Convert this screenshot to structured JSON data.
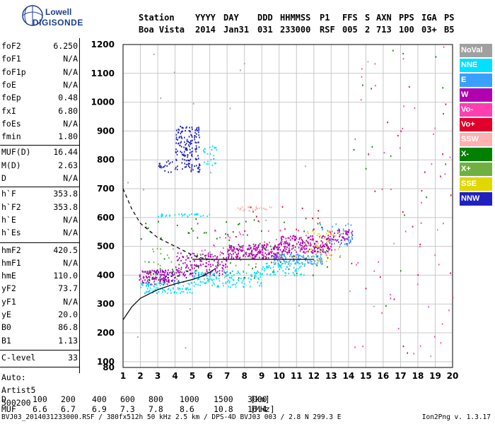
{
  "logo": {
    "line1": "Lowell",
    "line2": "DIGISONDE"
  },
  "header": {
    "labels": [
      "Station",
      "YYYY",
      "DAY",
      "DDD",
      "HHMMSS",
      "P1",
      "FFS",
      "S",
      "AXN",
      "PPS",
      "IGA",
      "PS"
    ],
    "values": [
      "Boa Vista",
      "2014",
      "Jan31",
      "031",
      "233000",
      "RSF",
      "005",
      "2",
      "713",
      "100",
      "03+",
      "B5"
    ]
  },
  "params": [
    {
      "label": "foF2",
      "value": "6.250"
    },
    {
      "label": "foF1",
      "value": "N/A"
    },
    {
      "label": "foF1p",
      "value": "N/A"
    },
    {
      "label": "foE",
      "value": "N/A"
    },
    {
      "label": "foEp",
      "value": "0.48"
    },
    {
      "label": "fxI",
      "value": "6.80"
    },
    {
      "label": "foEs",
      "value": "N/A"
    },
    {
      "label": "fmin",
      "value": "1.80"
    },
    {
      "label": "MUF(D)",
      "value": "16.44"
    },
    {
      "label": "M(D)",
      "value": "2.63"
    },
    {
      "label": "D",
      "value": "N/A"
    },
    {
      "label": "h`F",
      "value": "353.8"
    },
    {
      "label": "h`F2",
      "value": "353.8"
    },
    {
      "label": "h`E",
      "value": "N/A"
    },
    {
      "label": "h`Es",
      "value": "N/A"
    },
    {
      "label": "hmF2",
      "value": "420.5"
    },
    {
      "label": "hmF1",
      "value": "N/A"
    },
    {
      "label": "hmE",
      "value": "110.0"
    },
    {
      "label": "yF2",
      "value": "73.7"
    },
    {
      "label": "yF1",
      "value": "N/A"
    },
    {
      "label": "yE",
      "value": "20.0"
    },
    {
      "label": "B0",
      "value": "86.8"
    },
    {
      "label": "B1",
      "value": "1.13"
    },
    {
      "label": "C-level",
      "value": "33"
    }
  ],
  "auto": [
    "Auto:",
    "Artist5",
    "500200"
  ],
  "legend": [
    {
      "label": "NoVal",
      "color": "#a0a0a0"
    },
    {
      "label": "NNE",
      "color": "#00e0ff"
    },
    {
      "label": "E",
      "color": "#3aa0ff"
    },
    {
      "label": "W",
      "color": "#b000b0"
    },
    {
      "label": "Vo-",
      "color": "#ff3fb0"
    },
    {
      "label": "Vo+",
      "color": "#e0002a"
    },
    {
      "label": "SSW",
      "color": "#ffb0b0"
    },
    {
      "label": "X-",
      "color": "#008000"
    },
    {
      "label": "X+",
      "color": "#70b040"
    },
    {
      "label": "SSE",
      "color": "#e0d800"
    },
    {
      "label": "NNW",
      "color": "#2020c0"
    }
  ],
  "bottom": {
    "d_label": "D",
    "d_values": [
      "100",
      "200",
      "400",
      "600",
      "800",
      "1000",
      "1500",
      "3000"
    ],
    "d_unit": "[km]",
    "muf_label": "MUF",
    "muf_values": [
      "6.6",
      "6.7",
      "6.9",
      "7.3",
      "7.8",
      "8.6",
      "10.8",
      "16.4"
    ],
    "muf_unit": "[MHz]"
  },
  "footer": "BVJ03_2014031233000.RSF / 380fx512h 50 kHz 2.5 km / DPS-4D BVJ03 003 / 2.8 N 299.3 E",
  "version": "Ion2Png v. 1.3.17",
  "chart_data": {
    "type": "scatter",
    "xlim": [
      1,
      20
    ],
    "ylim": [
      80,
      1200
    ],
    "xticks": [
      1,
      2,
      3,
      4,
      5,
      6,
      7,
      8,
      9,
      10,
      11,
      12,
      13,
      14,
      15,
      16,
      17,
      18,
      19,
      20
    ],
    "yticks": [
      80,
      100,
      200,
      300,
      400,
      500,
      600,
      700,
      800,
      900,
      1000,
      1100,
      1200
    ],
    "grid": true,
    "legend_placement": "right",
    "profile_solid": {
      "x": [
        1.0,
        1.5,
        2.0,
        3.0,
        4.0,
        5.0,
        5.5,
        6.0,
        6.25
      ],
      "y": [
        245,
        290,
        320,
        350,
        370,
        385,
        395,
        410,
        420
      ]
    },
    "profile_dashed": {
      "x": [
        1.0,
        1.5,
        2.0,
        3.0,
        4.0,
        5.0,
        5.5,
        6.0
      ],
      "y": [
        700,
        630,
        580,
        530,
        500,
        470,
        460,
        455
      ]
    },
    "profile_flat": {
      "x": [
        5.0,
        12.0
      ],
      "y": [
        455,
        455
      ]
    },
    "clusters": [
      {
        "series": "W",
        "x": [
          1.9,
          4.0
        ],
        "y": [
          370,
          420
        ],
        "n": 130
      },
      {
        "series": "W",
        "x": [
          4.0,
          7.0
        ],
        "y": [
          400,
          480
        ],
        "n": 160
      },
      {
        "series": "W",
        "x": [
          7.0,
          10.0
        ],
        "y": [
          460,
          510
        ],
        "n": 200
      },
      {
        "series": "W",
        "x": [
          10.0,
          13.0
        ],
        "y": [
          480,
          540
        ],
        "n": 200
      },
      {
        "series": "W",
        "x": [
          13.0,
          14.2
        ],
        "y": [
          510,
          565
        ],
        "n": 50
      },
      {
        "series": "NNE",
        "x": [
          1.9,
          5.0
        ],
        "y": [
          340,
          380
        ],
        "n": 100
      },
      {
        "series": "NNE",
        "x": [
          5.0,
          9.0
        ],
        "y": [
          360,
          420
        ],
        "n": 140
      },
      {
        "series": "NNE",
        "x": [
          9.0,
          11.5
        ],
        "y": [
          400,
          450
        ],
        "n": 70
      },
      {
        "series": "NNE",
        "x": [
          3.0,
          6.0
        ],
        "y": [
          605,
          615
        ],
        "n": 30
      },
      {
        "series": "NNE",
        "x": [
          5.6,
          6.4
        ],
        "y": [
          780,
          850
        ],
        "n": 25
      },
      {
        "series": "E",
        "x": [
          9.5,
          12.5
        ],
        "y": [
          440,
          475
        ],
        "n": 110
      },
      {
        "series": "E",
        "x": [
          12.3,
          14.2
        ],
        "y": [
          500,
          590
        ],
        "n": 40
      },
      {
        "series": "NNW",
        "x": [
          4.0,
          5.4
        ],
        "y": [
          760,
          920
        ],
        "n": 170
      },
      {
        "series": "NNW",
        "x": [
          3.0,
          4.0
        ],
        "y": [
          760,
          800
        ],
        "n": 20
      },
      {
        "series": "NNW",
        "x": [
          2.5,
          5.0
        ],
        "y": [
          380,
          420
        ],
        "n": 25
      },
      {
        "series": "X-",
        "x": [
          2.0,
          13.0
        ],
        "y": [
          390,
          600
        ],
        "n": 80
      },
      {
        "series": "X+",
        "x": [
          1.8,
          9.0
        ],
        "y": [
          370,
          500
        ],
        "n": 40
      },
      {
        "series": "SSE",
        "x": [
          11.5,
          13.5
        ],
        "y": [
          450,
          560
        ],
        "n": 45
      },
      {
        "series": "SSW",
        "x": [
          7.6,
          9.6
        ],
        "y": [
          625,
          640
        ],
        "n": 30
      },
      {
        "series": "Vo-",
        "x": [
          5.5,
          13.5
        ],
        "y": [
          460,
          560
        ],
        "n": 60
      },
      {
        "series": "Vo+",
        "x": [
          7.0,
          13.0
        ],
        "y": [
          430,
          640
        ],
        "n": 25
      },
      {
        "series": "Vo-",
        "x": [
          14.0,
          20.0
        ],
        "y": [
          100,
          1200
        ],
        "n": 45
      },
      {
        "series": "Vo+",
        "x": [
          14.0,
          20.0
        ],
        "y": [
          100,
          1200
        ],
        "n": 25
      },
      {
        "series": "X-",
        "x": [
          14.0,
          20.0
        ],
        "y": [
          150,
          1200
        ],
        "n": 15
      },
      {
        "series": "NoVal",
        "x": [
          1.0,
          20.0
        ],
        "y": [
          80,
          1200
        ],
        "n": 25
      }
    ]
  }
}
